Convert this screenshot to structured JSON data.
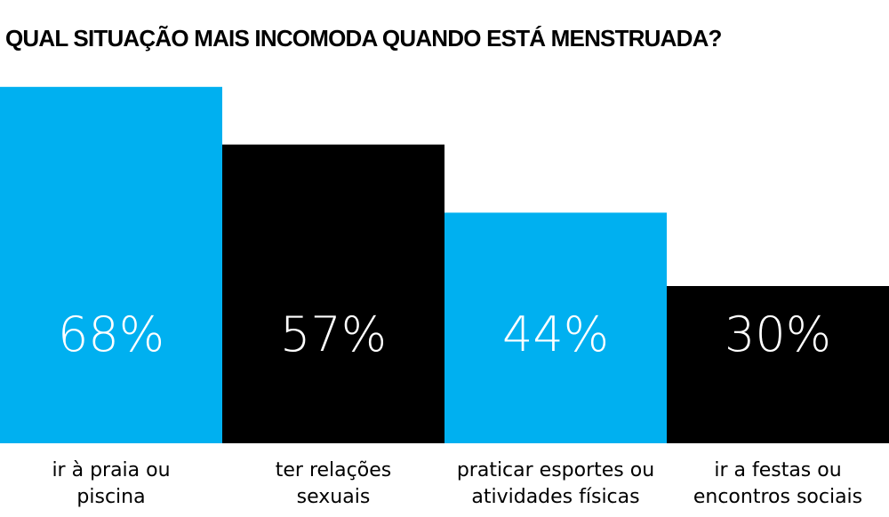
{
  "chart_data": {
    "type": "bar",
    "title": "QUAL SITUAÇÃO MAIS INCOMODA QUANDO ESTÁ MENSTRUADA?",
    "categories": [
      [
        "ir à praia ou",
        "piscina"
      ],
      [
        "ter relações",
        "sexuais"
      ],
      [
        "praticar esportes ou",
        "atividades físicas"
      ],
      [
        "ir a festas ou",
        "encontros sociais"
      ]
    ],
    "values": [
      68,
      57,
      44,
      30
    ],
    "value_labels": [
      "68%",
      "57%",
      "44%",
      "30%"
    ],
    "bar_colors": [
      "#00b0f0",
      "#000000",
      "#00b0f0",
      "#000000"
    ],
    "ylim": [
      0,
      100
    ],
    "xlabel": "",
    "ylabel": "",
    "grid": false,
    "legend": "none"
  }
}
